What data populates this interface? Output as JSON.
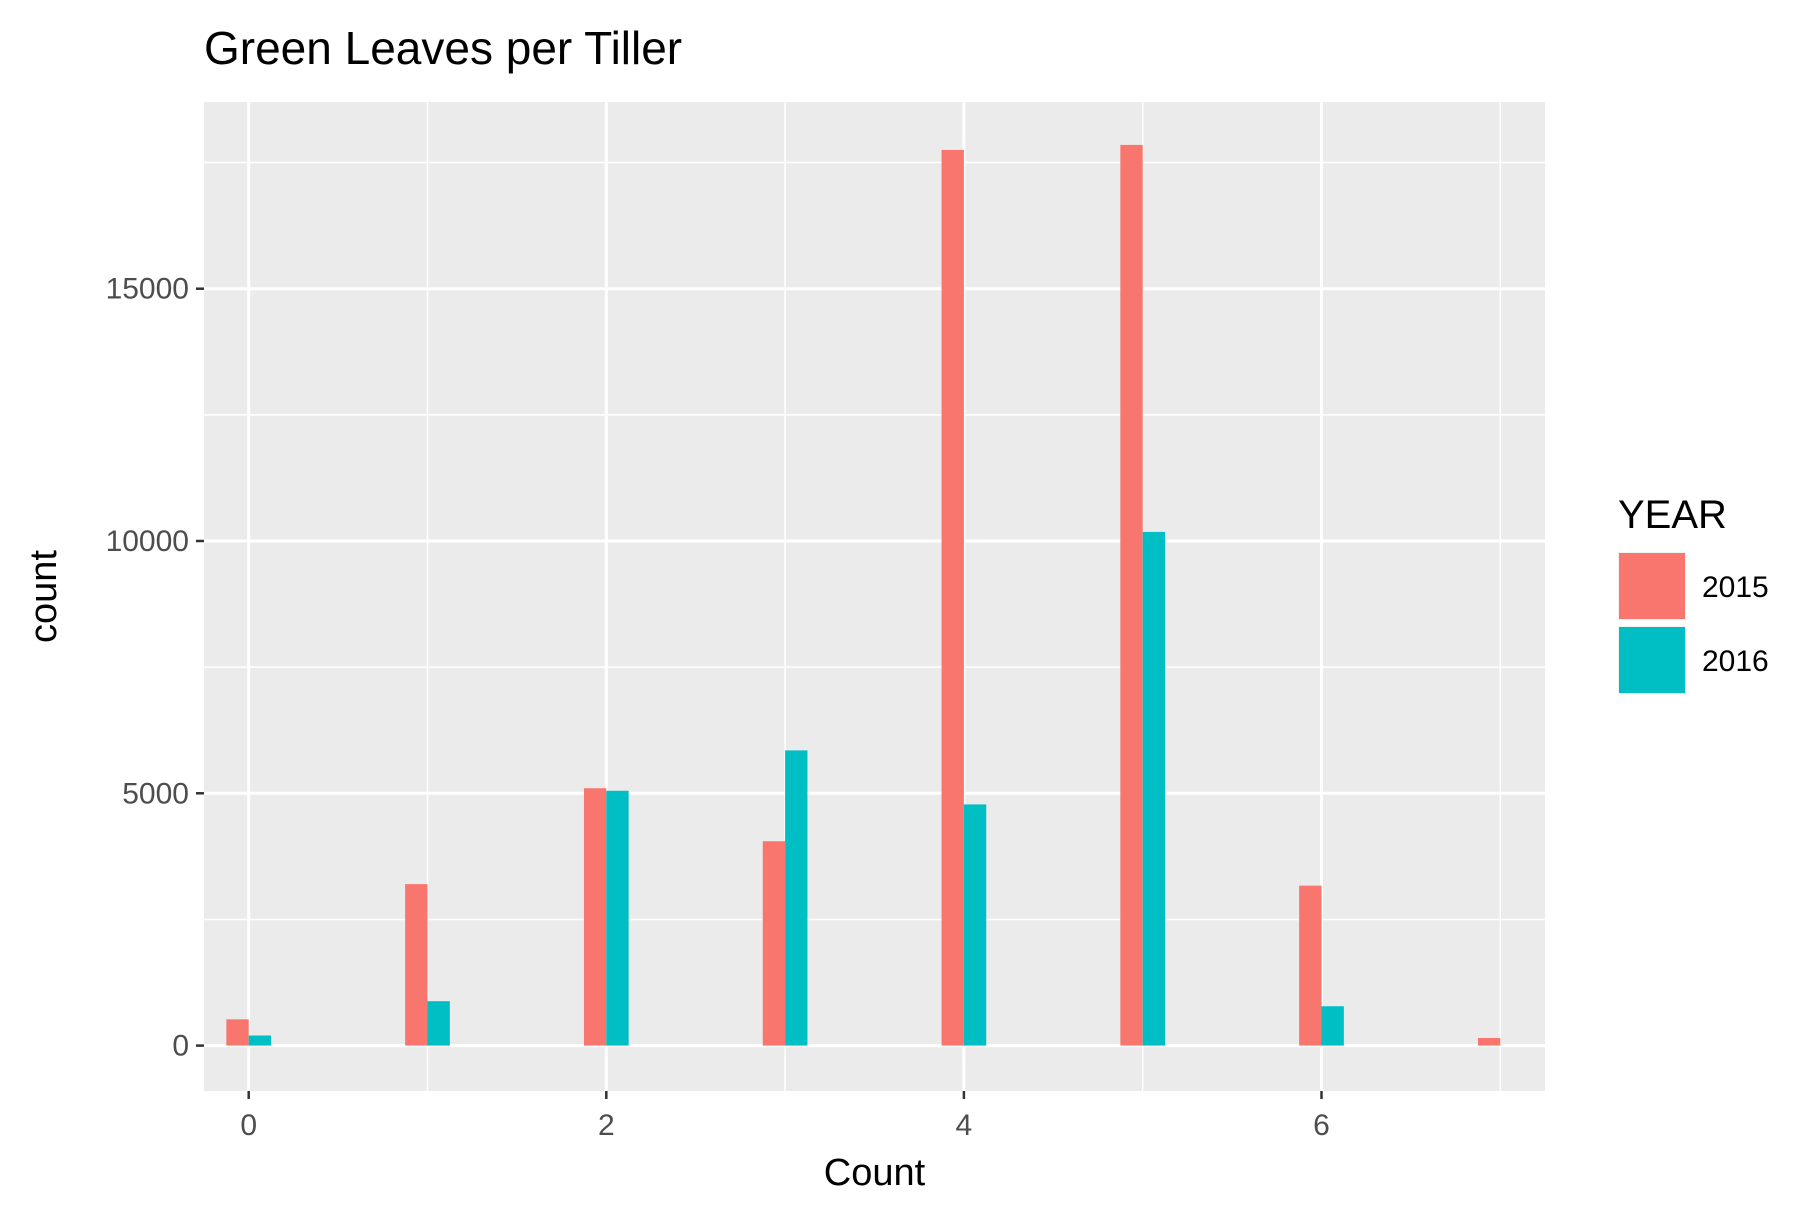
{
  "chart_data": {
    "type": "bar",
    "title": "Green Leaves per Tiller",
    "xlabel": "Count",
    "ylabel": "count",
    "x": [
      0,
      1,
      2,
      3,
      4,
      5,
      6,
      7
    ],
    "x_ticks": [
      0,
      2,
      4,
      6
    ],
    "y_ticks": [
      0,
      5000,
      10000,
      15000
    ],
    "xlim": [
      -0.25,
      7.25
    ],
    "ylim": [
      -900,
      18700
    ],
    "grid": true,
    "legend_title": "YEAR",
    "legend_position": "right",
    "series": [
      {
        "name": "2015",
        "color": "#F8766D",
        "values": [
          520,
          3200,
          5100,
          4050,
          17750,
          17850,
          3170,
          150
        ]
      },
      {
        "name": "2016",
        "color": "#00BFC4",
        "values": [
          200,
          880,
          5050,
          5850,
          4780,
          10180,
          780,
          0
        ]
      }
    ]
  }
}
